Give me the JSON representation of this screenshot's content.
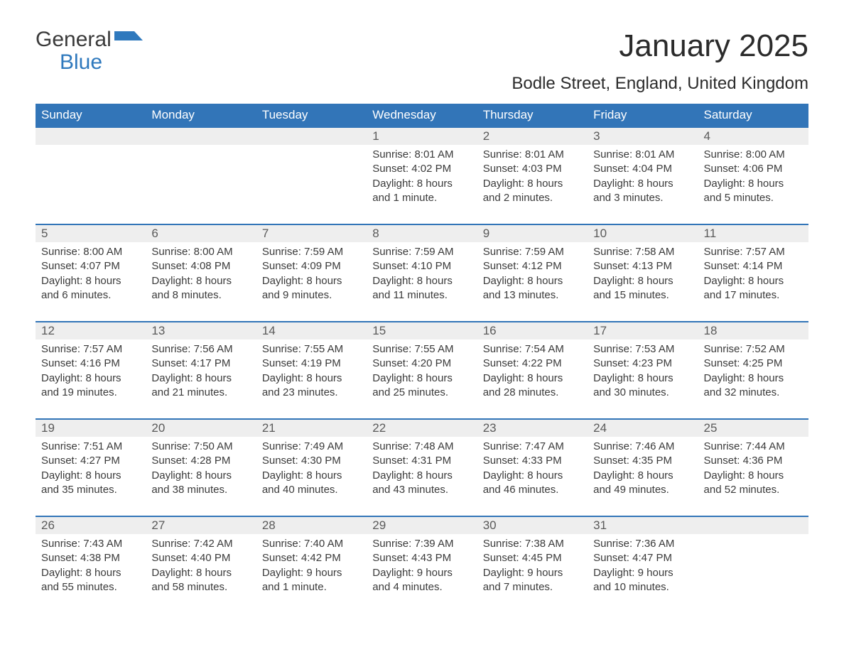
{
  "brand": {
    "word1": "General",
    "word2": "Blue",
    "flag_color": "#2f79bd"
  },
  "title": "January 2025",
  "location": "Bodle Street, England, United Kingdom",
  "colors": {
    "header_bg": "#3275b8",
    "header_text": "#ffffff",
    "daynum_bg": "#eeeeee",
    "row_border": "#3275b8",
    "body_text": "#3a3a3a",
    "background": "#ffffff"
  },
  "day_headers": [
    "Sunday",
    "Monday",
    "Tuesday",
    "Wednesday",
    "Thursday",
    "Friday",
    "Saturday"
  ],
  "weeks": [
    [
      null,
      null,
      null,
      {
        "n": "1",
        "sr": "8:01 AM",
        "ss": "4:02 PM",
        "dl": "8 hours and 1 minute."
      },
      {
        "n": "2",
        "sr": "8:01 AM",
        "ss": "4:03 PM",
        "dl": "8 hours and 2 minutes."
      },
      {
        "n": "3",
        "sr": "8:01 AM",
        "ss": "4:04 PM",
        "dl": "8 hours and 3 minutes."
      },
      {
        "n": "4",
        "sr": "8:00 AM",
        "ss": "4:06 PM",
        "dl": "8 hours and 5 minutes."
      }
    ],
    [
      {
        "n": "5",
        "sr": "8:00 AM",
        "ss": "4:07 PM",
        "dl": "8 hours and 6 minutes."
      },
      {
        "n": "6",
        "sr": "8:00 AM",
        "ss": "4:08 PM",
        "dl": "8 hours and 8 minutes."
      },
      {
        "n": "7",
        "sr": "7:59 AM",
        "ss": "4:09 PM",
        "dl": "8 hours and 9 minutes."
      },
      {
        "n": "8",
        "sr": "7:59 AM",
        "ss": "4:10 PM",
        "dl": "8 hours and 11 minutes."
      },
      {
        "n": "9",
        "sr": "7:59 AM",
        "ss": "4:12 PM",
        "dl": "8 hours and 13 minutes."
      },
      {
        "n": "10",
        "sr": "7:58 AM",
        "ss": "4:13 PM",
        "dl": "8 hours and 15 minutes."
      },
      {
        "n": "11",
        "sr": "7:57 AM",
        "ss": "4:14 PM",
        "dl": "8 hours and 17 minutes."
      }
    ],
    [
      {
        "n": "12",
        "sr": "7:57 AM",
        "ss": "4:16 PM",
        "dl": "8 hours and 19 minutes."
      },
      {
        "n": "13",
        "sr": "7:56 AM",
        "ss": "4:17 PM",
        "dl": "8 hours and 21 minutes."
      },
      {
        "n": "14",
        "sr": "7:55 AM",
        "ss": "4:19 PM",
        "dl": "8 hours and 23 minutes."
      },
      {
        "n": "15",
        "sr": "7:55 AM",
        "ss": "4:20 PM",
        "dl": "8 hours and 25 minutes."
      },
      {
        "n": "16",
        "sr": "7:54 AM",
        "ss": "4:22 PM",
        "dl": "8 hours and 28 minutes."
      },
      {
        "n": "17",
        "sr": "7:53 AM",
        "ss": "4:23 PM",
        "dl": "8 hours and 30 minutes."
      },
      {
        "n": "18",
        "sr": "7:52 AM",
        "ss": "4:25 PM",
        "dl": "8 hours and 32 minutes."
      }
    ],
    [
      {
        "n": "19",
        "sr": "7:51 AM",
        "ss": "4:27 PM",
        "dl": "8 hours and 35 minutes."
      },
      {
        "n": "20",
        "sr": "7:50 AM",
        "ss": "4:28 PM",
        "dl": "8 hours and 38 minutes."
      },
      {
        "n": "21",
        "sr": "7:49 AM",
        "ss": "4:30 PM",
        "dl": "8 hours and 40 minutes."
      },
      {
        "n": "22",
        "sr": "7:48 AM",
        "ss": "4:31 PM",
        "dl": "8 hours and 43 minutes."
      },
      {
        "n": "23",
        "sr": "7:47 AM",
        "ss": "4:33 PM",
        "dl": "8 hours and 46 minutes."
      },
      {
        "n": "24",
        "sr": "7:46 AM",
        "ss": "4:35 PM",
        "dl": "8 hours and 49 minutes."
      },
      {
        "n": "25",
        "sr": "7:44 AM",
        "ss": "4:36 PM",
        "dl": "8 hours and 52 minutes."
      }
    ],
    [
      {
        "n": "26",
        "sr": "7:43 AM",
        "ss": "4:38 PM",
        "dl": "8 hours and 55 minutes."
      },
      {
        "n": "27",
        "sr": "7:42 AM",
        "ss": "4:40 PM",
        "dl": "8 hours and 58 minutes."
      },
      {
        "n": "28",
        "sr": "7:40 AM",
        "ss": "4:42 PM",
        "dl": "9 hours and 1 minute."
      },
      {
        "n": "29",
        "sr": "7:39 AM",
        "ss": "4:43 PM",
        "dl": "9 hours and 4 minutes."
      },
      {
        "n": "30",
        "sr": "7:38 AM",
        "ss": "4:45 PM",
        "dl": "9 hours and 7 minutes."
      },
      {
        "n": "31",
        "sr": "7:36 AM",
        "ss": "4:47 PM",
        "dl": "9 hours and 10 minutes."
      },
      null
    ]
  ],
  "labels": {
    "sunrise": "Sunrise: ",
    "sunset": "Sunset: ",
    "daylight": "Daylight: "
  }
}
